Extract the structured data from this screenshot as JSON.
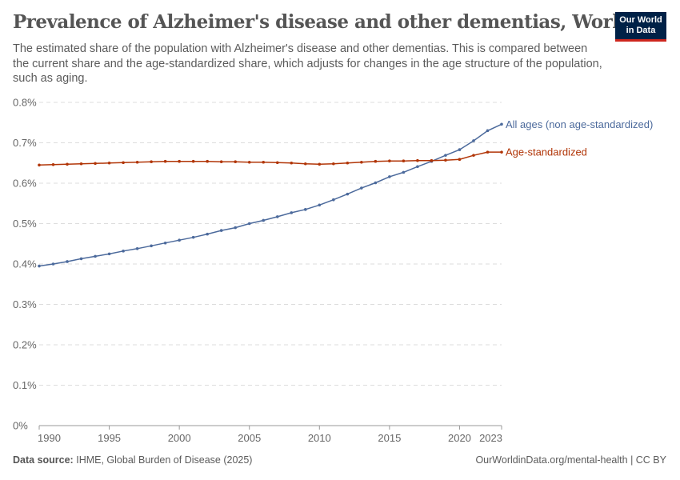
{
  "title": "Prevalence of Alzheimer's disease and other dementias, World",
  "subtitle": "The estimated share of the population with Alzheimer's disease and other dementias. This is compared between the current share and the age-standardized share, which adjusts for changes in the age structure of the population, such as aging.",
  "logo": {
    "line1": "Our World",
    "line2": "in Data"
  },
  "footer": {
    "source_label": "Data source:",
    "source": "IHME, Global Burden of Disease (2025)",
    "url": "OurWorldinData.org/mental-health | CC BY"
  },
  "chart_data": {
    "type": "line",
    "title": "Prevalence of Alzheimer's disease and other dementias, World",
    "xlim": [
      1990,
      2023
    ],
    "ylim": [
      0,
      0.8
    ],
    "x_ticks": [
      1990,
      1995,
      2000,
      2005,
      2010,
      2015,
      2020,
      2023
    ],
    "y_ticks": [
      "0%",
      "0.1%",
      "0.2%",
      "0.3%",
      "0.4%",
      "0.5%",
      "0.6%",
      "0.7%",
      "0.8%"
    ],
    "y_unit": "%",
    "grid": "horizontal dashed",
    "legend": "inline labels at line ends, right",
    "x": [
      1990,
      1991,
      1992,
      1993,
      1994,
      1995,
      1996,
      1997,
      1998,
      1999,
      2000,
      2001,
      2002,
      2003,
      2004,
      2005,
      2006,
      2007,
      2008,
      2009,
      2010,
      2011,
      2012,
      2013,
      2014,
      2015,
      2016,
      2017,
      2018,
      2019,
      2020,
      2021,
      2022,
      2023
    ],
    "series": [
      {
        "name": "All ages (non age-standardized)",
        "color": "#4c6a9c",
        "values": [
          0.395,
          0.4,
          0.406,
          0.413,
          0.419,
          0.425,
          0.432,
          0.438,
          0.445,
          0.452,
          0.459,
          0.466,
          0.474,
          0.483,
          0.49,
          0.5,
          0.508,
          0.517,
          0.527,
          0.535,
          0.546,
          0.559,
          0.573,
          0.588,
          0.601,
          0.616,
          0.627,
          0.641,
          0.654,
          0.669,
          0.683,
          0.705,
          0.73,
          0.746
        ]
      },
      {
        "name": "Age-standardized",
        "color": "#b13507",
        "values": [
          0.645,
          0.646,
          0.647,
          0.648,
          0.649,
          0.65,
          0.651,
          0.652,
          0.653,
          0.654,
          0.654,
          0.654,
          0.654,
          0.653,
          0.653,
          0.652,
          0.652,
          0.651,
          0.65,
          0.648,
          0.647,
          0.648,
          0.65,
          0.652,
          0.654,
          0.655,
          0.655,
          0.656,
          0.656,
          0.657,
          0.659,
          0.669,
          0.677,
          0.677
        ]
      }
    ]
  }
}
